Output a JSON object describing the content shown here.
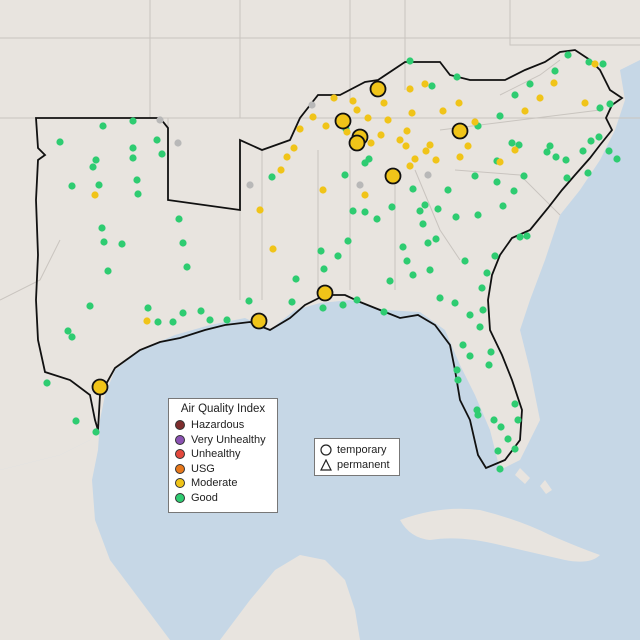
{
  "legend": {
    "title": "Air Quality Index",
    "categories": [
      {
        "label": "Hazardous",
        "color": "#7e2d2d"
      },
      {
        "label": "Very Unhealthy",
        "color": "#8b52b3"
      },
      {
        "label": "Unhealthy",
        "color": "#e3483c"
      },
      {
        "label": "USG",
        "color": "#e8781a"
      },
      {
        "label": "Moderate",
        "color": "#f0c419"
      },
      {
        "label": "Good",
        "color": "#2ecc71"
      }
    ]
  },
  "monitor_legend": {
    "temporary_label": "temporary",
    "permanent_label": "permanent"
  },
  "colors": {
    "land": "#e8e4df",
    "water": "#c6d7e6",
    "no_data": "#b8b8b8"
  }
}
